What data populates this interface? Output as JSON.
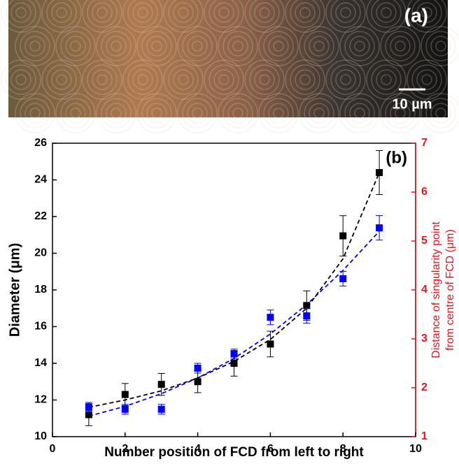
{
  "image": {
    "label": "(a)",
    "scale_label": "10 µm"
  },
  "chart_data": {
    "type": "scatter",
    "annotation": "(b)",
    "xlabel": "Number position of FCD from left to right",
    "ylabel": "Diameter (μm)",
    "y2label": [
      "Distance of singularity point",
      "from centre of FCD (μm)"
    ],
    "x": [
      1,
      2,
      3,
      4,
      5,
      6,
      7,
      8,
      9
    ],
    "xlim": [
      0,
      10
    ],
    "xticks": [
      0,
      2,
      4,
      6,
      8,
      10
    ],
    "ylim": [
      10,
      26
    ],
    "yticks": [
      10,
      12,
      14,
      16,
      18,
      20,
      22,
      24,
      26
    ],
    "y2lim": [
      1,
      7
    ],
    "y2ticks": [
      1,
      2,
      3,
      4,
      5,
      6,
      7
    ],
    "y2color": "#e8141c",
    "series": [
      {
        "color": "#000000",
        "axis": "y",
        "values": [
          11.2,
          12.3,
          12.85,
          13.0,
          14.0,
          15.05,
          17.15,
          20.95,
          24.4
        ],
        "errors": [
          0.6,
          0.6,
          0.6,
          0.6,
          0.7,
          0.7,
          0.8,
          1.1,
          1.2
        ]
      },
      {
        "color": "#0000ff",
        "axis": "y2",
        "values": [
          1.6,
          1.56,
          1.56,
          2.4,
          2.69,
          3.44,
          3.47,
          4.23,
          5.27
        ],
        "errors": [
          0.1,
          0.1,
          0.1,
          0.1,
          0.1,
          0.15,
          0.15,
          0.15,
          0.25
        ]
      }
    ],
    "fit_lines": [
      {
        "color": "#000000",
        "axis": "y",
        "values": [
          11.6,
          12.0,
          12.5,
          13.2,
          14.1,
          15.3,
          17.0,
          19.7,
          24.4
        ]
      },
      {
        "color": "#0000ff",
        "axis": "y2",
        "values": [
          1.42,
          1.62,
          1.88,
          2.2,
          2.6,
          3.1,
          3.7,
          4.4,
          5.2
        ]
      }
    ]
  }
}
